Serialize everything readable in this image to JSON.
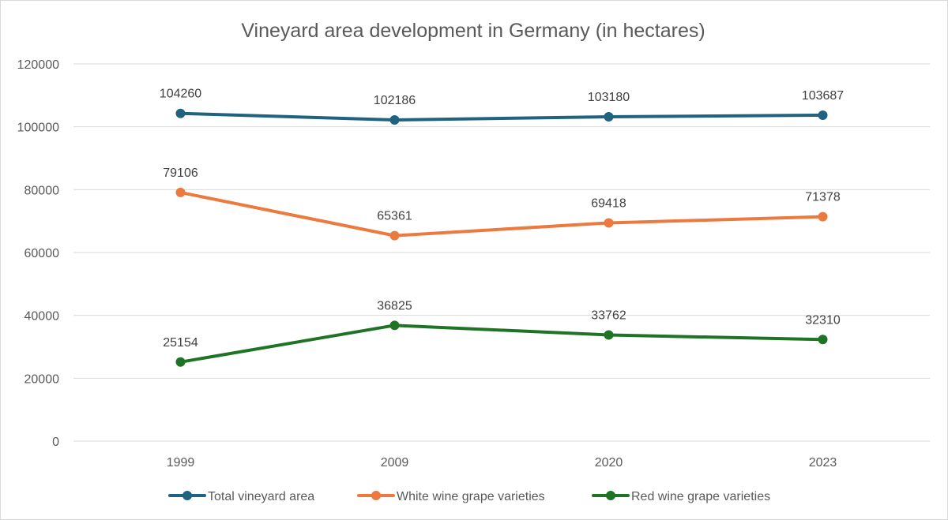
{
  "chart_data": {
    "type": "line",
    "title": "Vineyard area development in Germany (in hectares)",
    "xlabel": "",
    "ylabel": "",
    "categories": [
      "1999",
      "2009",
      "2020",
      "2023"
    ],
    "ylim": [
      0,
      120000
    ],
    "yticks": [
      "0",
      "20000",
      "40000",
      "60000",
      "80000",
      "100000",
      "120000"
    ],
    "grid": true,
    "legend": "bottom",
    "series": [
      {
        "name": "Total vineyard area",
        "color": "#1f6380",
        "values": [
          104260,
          102186,
          103180,
          103687
        ],
        "labels": [
          "104260",
          "102186",
          "103180",
          "103687"
        ]
      },
      {
        "name": "White wine grape varieties",
        "color": "#ec7a3f",
        "values": [
          79106,
          65361,
          69418,
          71378
        ],
        "labels": [
          "79106",
          "65361",
          "69418",
          "71378"
        ]
      },
      {
        "name": "Red wine grape varieties",
        "color": "#1e7424",
        "values": [
          25154,
          36825,
          33762,
          32310
        ],
        "labels": [
          "25154",
          "36825",
          "33762",
          "32310"
        ]
      }
    ]
  }
}
